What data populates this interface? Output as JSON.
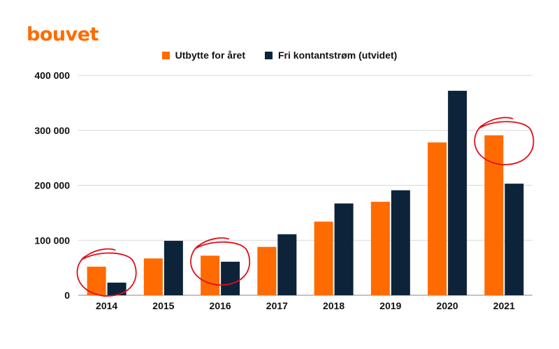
{
  "brand": {
    "logo_text": "bouvet",
    "logo_color": "#ff6b00"
  },
  "chart_data": {
    "type": "bar",
    "title": "",
    "xlabel": "",
    "ylabel": "",
    "categories": [
      "2014",
      "2015",
      "2016",
      "2017",
      "2018",
      "2019",
      "2020",
      "2021"
    ],
    "series": [
      {
        "name": "Utbytte for året",
        "color": "#ff6b00",
        "values": [
          52000,
          67000,
          72000,
          88000,
          134000,
          170000,
          278000,
          291000
        ]
      },
      {
        "name": "Fri kontantstrøm (utvidet)",
        "color": "#0d233a",
        "values": [
          23000,
          99000,
          61000,
          111000,
          167000,
          191000,
          372000,
          203000
        ]
      }
    ],
    "ylim": [
      0,
      400000
    ],
    "yticks": [
      0,
      100000,
      200000,
      300000,
      400000
    ],
    "ytick_labels": [
      "0",
      "100 000",
      "200 000",
      "300 000",
      "400 000"
    ],
    "grid": true,
    "legend_position": "top-center",
    "highlight_circles": [
      "2014",
      "2016",
      "2021"
    ],
    "highlight_color": "#e0101a"
  }
}
